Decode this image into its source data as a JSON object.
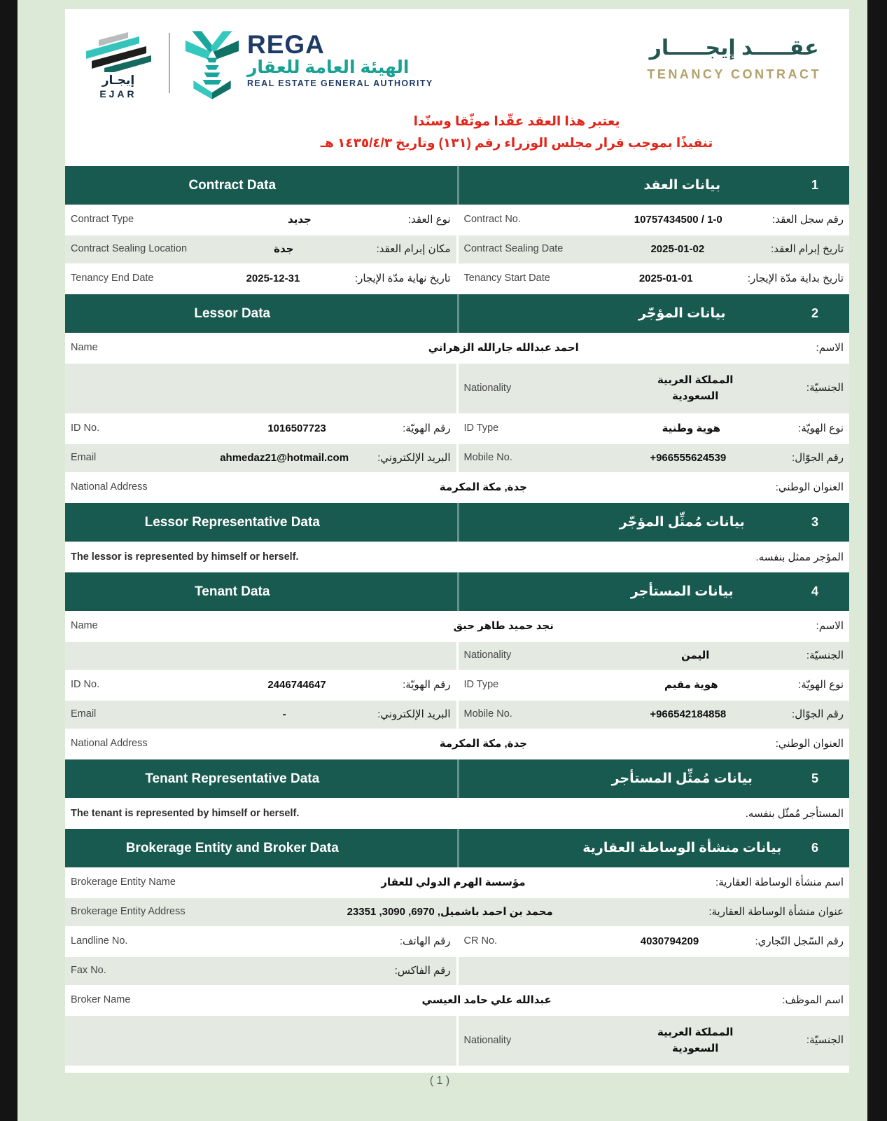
{
  "colors": {
    "section_band_green": "#185a50",
    "row_alt_green": "#e4e9e2",
    "page_margin_green": "#dde9d7",
    "disclaimer_red": "#e32419",
    "title_gold": "#b2a169",
    "rega_navy": "#1e3a66",
    "logo_teal": "#2bbdb4"
  },
  "header": {
    "ejar_logo": {
      "arabic": "إيجـار",
      "latin": "EJAR"
    },
    "rega_logo": {
      "name": "REGA",
      "arabic": "الهيئة العامة للعقار",
      "english": "REAL ESTATE GENERAL AUTHORITY"
    },
    "title_ar": "عقـــــد إيجـــــار",
    "title_en": "TENANCY CONTRACT",
    "disclaimer_line1": "يعتبر هذا العقد عقّدا موثّقا وسنّدا",
    "disclaimer_line2": "تنفيذًا بموجب قرار مجلس الوزراء رقم (١٣١) وتاريخ ١٤٣٥/٤/٣ هـ"
  },
  "sections": [
    {
      "num": "1",
      "title_ar": "بيانات العقد",
      "title_en": "Contract Data",
      "rows": [
        {
          "type": "pair",
          "bg": "white",
          "right": {
            "label_ar": "رقم سجل العقد:",
            "value": "10757434500 / 1-0",
            "label_en": "Contract No."
          },
          "left": {
            "label_ar": "نوع العقد:",
            "value": "جديد",
            "label_en": "Contract Type"
          }
        },
        {
          "type": "pair",
          "bg": "green",
          "right": {
            "label_ar": "تاريخ إبرام العقد:",
            "value": "2025-01-02",
            "label_en": "Contract Sealing Date"
          },
          "left": {
            "label_ar": "مكان إبرام العقد:",
            "value": "جدة",
            "label_en": "Contract Sealing Location"
          }
        },
        {
          "type": "pair",
          "bg": "white",
          "right": {
            "label_ar": "تاريخ بداية مدّة الإيجار:",
            "value": "2025-01-01",
            "label_en": "Tenancy Start Date"
          },
          "left": {
            "label_ar": "تاريخ نهاية مدّة الإيجار:",
            "value": "2025-12-31",
            "label_en": "Tenancy End Date"
          }
        }
      ]
    },
    {
      "num": "2",
      "title_ar": "بيانات المؤجّر",
      "title_en": "Lessor Data",
      "rows": [
        {
          "type": "full",
          "bg": "white",
          "f": {
            "label_ar": "الاسم:",
            "value": "احمد عبدالله جارالله الزهراني",
            "label_en": "Name"
          }
        },
        {
          "type": "half-right",
          "bg": "green",
          "tall": true,
          "right": {
            "label_ar": "الجنسيّة:",
            "value": "المملكة العربية السعودية",
            "label_en": "Nationality"
          }
        },
        {
          "type": "pair",
          "bg": "white",
          "right": {
            "label_ar": "نوع الهويّة:",
            "value": "هوية وطنية",
            "label_en": "ID Type"
          },
          "left": {
            "label_ar": "رقم الهويّة:",
            "value": "1016507723",
            "label_en": "ID No."
          }
        },
        {
          "type": "pair",
          "bg": "green",
          "right": {
            "label_ar": "رقم الجوّال:",
            "value": "+966555624539",
            "label_en": "Mobile No."
          },
          "left": {
            "label_ar": "البريد الإلكتروني:",
            "value": "ahmedaz21@hotmail.com",
            "label_en": "Email"
          }
        },
        {
          "type": "full",
          "bg": "white",
          "f": {
            "label_ar": "العنوان الوطني:",
            "value": "جدة, مكة المكرمة",
            "label_en": "National Address"
          }
        }
      ]
    },
    {
      "num": "3",
      "title_ar": "بيانات مُمثِّل المؤجّر",
      "title_en": "Lessor Representative Data",
      "rows": [
        {
          "type": "note",
          "bg": "white",
          "note_ar": "المؤجر ممثل بنفسه.",
          "note_en": "The lessor is represented by himself or herself."
        }
      ]
    },
    {
      "num": "4",
      "title_ar": "بيانات المستأجر",
      "title_en": "Tenant Data",
      "rows": [
        {
          "type": "full",
          "bg": "white",
          "f": {
            "label_ar": "الاسم:",
            "value": "نجد حميد طاهر حبق",
            "label_en": "Name"
          }
        },
        {
          "type": "half-right",
          "bg": "green",
          "right": {
            "label_ar": "الجنسيّة:",
            "value": "اليمن",
            "label_en": "Nationality"
          }
        },
        {
          "type": "pair",
          "bg": "white",
          "right": {
            "label_ar": "نوع الهويّة:",
            "value": "هوية مقيم",
            "label_en": "ID Type"
          },
          "left": {
            "label_ar": "رقم الهويّة:",
            "value": "2446744647",
            "label_en": "ID No."
          }
        },
        {
          "type": "pair",
          "bg": "green",
          "right": {
            "label_ar": "رقم الجوّال:",
            "value": "+966542184858",
            "label_en": "Mobile No."
          },
          "left": {
            "label_ar": "البريد الإلكتروني:",
            "value": "-",
            "label_en": "Email"
          }
        },
        {
          "type": "full",
          "bg": "white",
          "f": {
            "label_ar": "العنوان الوطني:",
            "value": "جدة, مكة المكرمة",
            "label_en": "National Address"
          }
        }
      ]
    },
    {
      "num": "5",
      "title_ar": "بيانات مُمثِّل المستأجر",
      "title_en": "Tenant Representative Data",
      "rows": [
        {
          "type": "note",
          "bg": "white",
          "note_ar": "المستأجر مُمثّل بنفسه.",
          "note_en": "The tenant is represented by himself or herself."
        }
      ]
    },
    {
      "num": "6",
      "title_ar": "بيانات منشأة الوساطة العقارية",
      "title_en": "Brokerage Entity and Broker Data",
      "rows": [
        {
          "type": "full",
          "bg": "white",
          "f": {
            "label_ar": "اسم منشأة الوساطة العقارية:",
            "value": "مؤسسة الهرم الدولي للعقار",
            "label_en": "Brokerage Entity Name"
          }
        },
        {
          "type": "full",
          "bg": "green",
          "f": {
            "label_ar": "عنوان منشأة الوساطة العقارية:",
            "value": "محمد بن احمد باشميل, 6970, 3090, 23351",
            "label_en": "Brokerage Entity Address"
          }
        },
        {
          "type": "pair",
          "bg": "white",
          "right": {
            "label_ar": "رقم السّجل التّجاري:",
            "value": "4030794209",
            "label_en": "CR No."
          },
          "left": {
            "label_ar": "رقم الهاتف:",
            "value": "",
            "label_en": "Landline No."
          }
        },
        {
          "type": "half-left",
          "bg": "green",
          "left": {
            "label_ar": "رقم الفاكس:",
            "value": "",
            "label_en": "Fax No."
          }
        },
        {
          "type": "full",
          "bg": "white",
          "f": {
            "label_ar": "اسم الموظف:",
            "value": "عبدالله علي حامد العيسي",
            "label_en": "Broker Name"
          }
        },
        {
          "type": "half-right",
          "bg": "green",
          "tall": true,
          "right": {
            "label_ar": "الجنسيّة:",
            "value": "المملكة العربية السعودية",
            "label_en": "Nationality"
          }
        }
      ]
    }
  ],
  "footer": {
    "page_number": "( 1 )"
  }
}
